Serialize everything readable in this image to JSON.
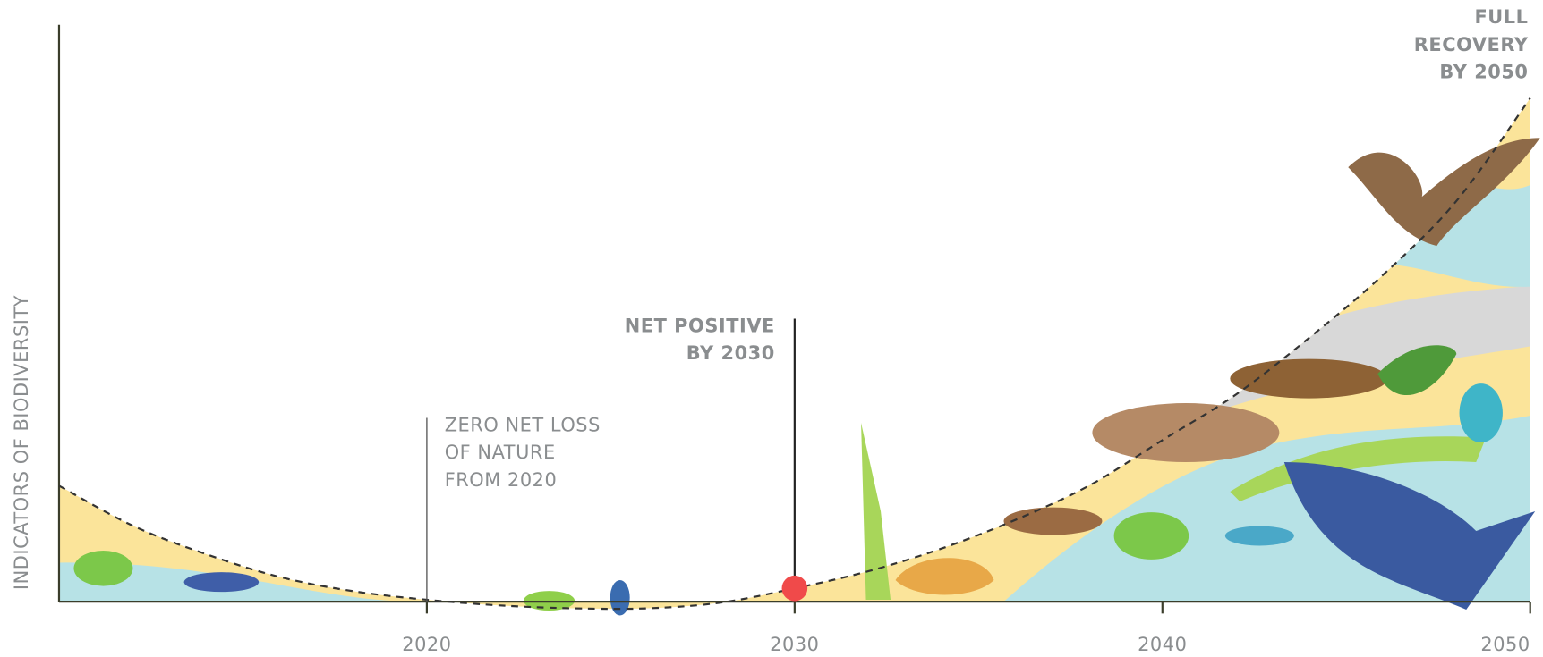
{
  "chart_data": {
    "type": "line",
    "y_label": "INDICATORS OF BIODIVERSITY",
    "x": [
      2010,
      2012,
      2014,
      2016,
      2018,
      2020,
      2022,
      2024,
      2026,
      2028,
      2030,
      2032,
      2034,
      2036,
      2038,
      2040,
      2042,
      2044,
      2046,
      2048,
      2050
    ],
    "values": [
      20,
      13,
      8,
      4,
      1.5,
      0,
      -1,
      -1.5,
      -1.5,
      -0.5,
      2,
      5,
      9,
      14,
      20,
      28,
      36,
      46,
      57,
      70,
      88
    ],
    "color": "#333333",
    "line_style": "dashed",
    "xlim": [
      2010,
      2050
    ],
    "ylim": [
      0,
      100
    ],
    "xticks": [
      2020,
      2030,
      2040,
      2050
    ],
    "annotations": [
      {
        "x": 2020,
        "lines": [
          "ZERO NET LOSS",
          "OF NATURE",
          "FROM 2020"
        ],
        "bold": false
      },
      {
        "x": 2030,
        "lines": [
          "NET POSITIVE",
          "BY 2030"
        ],
        "bold": true
      },
      {
        "x": 2050,
        "lines": [
          "FULL",
          "RECOVERY",
          "BY 2050"
        ],
        "bold": true
      }
    ],
    "highlight": {
      "x": 2030,
      "y": 2,
      "color": "#f04a4a"
    }
  }
}
